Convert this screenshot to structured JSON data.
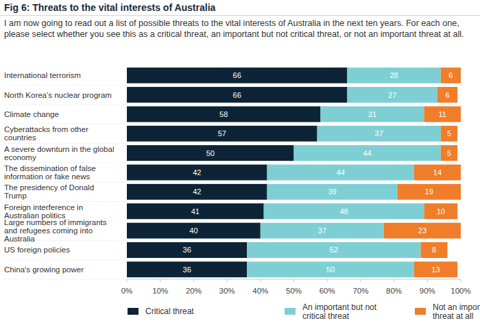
{
  "chart_data": {
    "type": "bar",
    "orientation": "horizontal",
    "stacked": true,
    "data_labels": true,
    "grid": false,
    "legend": "bottom",
    "title": "Fig 6: Threats to the vital interests of Australia",
    "subtitle": "I am now going to read out a list of possible threats to the vital interests of Australia in the next ten years. For each one, please select whether you see this as a critical threat, an important but not critical threat, or not an important threat at all.",
    "categories": [
      "International terrorism",
      "North Korea's nuclear program",
      "Climate change",
      "Cyberattacks from other countries",
      "A severe downturn in the global economy",
      "The dissemination of false information or fake news",
      "The presidency of Donald Trump",
      "Foreign interference in Australian politics",
      "Large numbers of immigrants and refugees coming into Australia",
      "US foreign policies",
      "China's growing power"
    ],
    "series": [
      {
        "name": "Critical threat",
        "color": "#0d2436",
        "values": [
          66,
          66,
          58,
          57,
          50,
          42,
          42,
          41,
          40,
          36,
          36
        ]
      },
      {
        "name": "An important but not critical threat",
        "color": "#7ecfd4",
        "values": [
          28,
          27,
          31,
          37,
          44,
          44,
          39,
          48,
          37,
          52,
          50
        ]
      },
      {
        "name": "Not an important threat at all",
        "color": "#f07d2a",
        "values": [
          6,
          6,
          11,
          5,
          5,
          14,
          19,
          10,
          23,
          8,
          13
        ]
      }
    ],
    "xlim": [
      0,
      100
    ],
    "xticks": [
      {
        "value": 0,
        "label": "0%"
      },
      {
        "value": 10,
        "label": "10%"
      },
      {
        "value": 20,
        "label": "20%"
      },
      {
        "value": 30,
        "label": "30%"
      },
      {
        "value": 40,
        "label": "40%"
      },
      {
        "value": 50,
        "label": "50%"
      },
      {
        "value": 60,
        "label": "60%"
      },
      {
        "value": 70,
        "label": "70%"
      },
      {
        "value": 80,
        "label": "80%"
      },
      {
        "value": 90,
        "label": "90%"
      },
      {
        "value": 100,
        "label": "100%"
      }
    ]
  }
}
